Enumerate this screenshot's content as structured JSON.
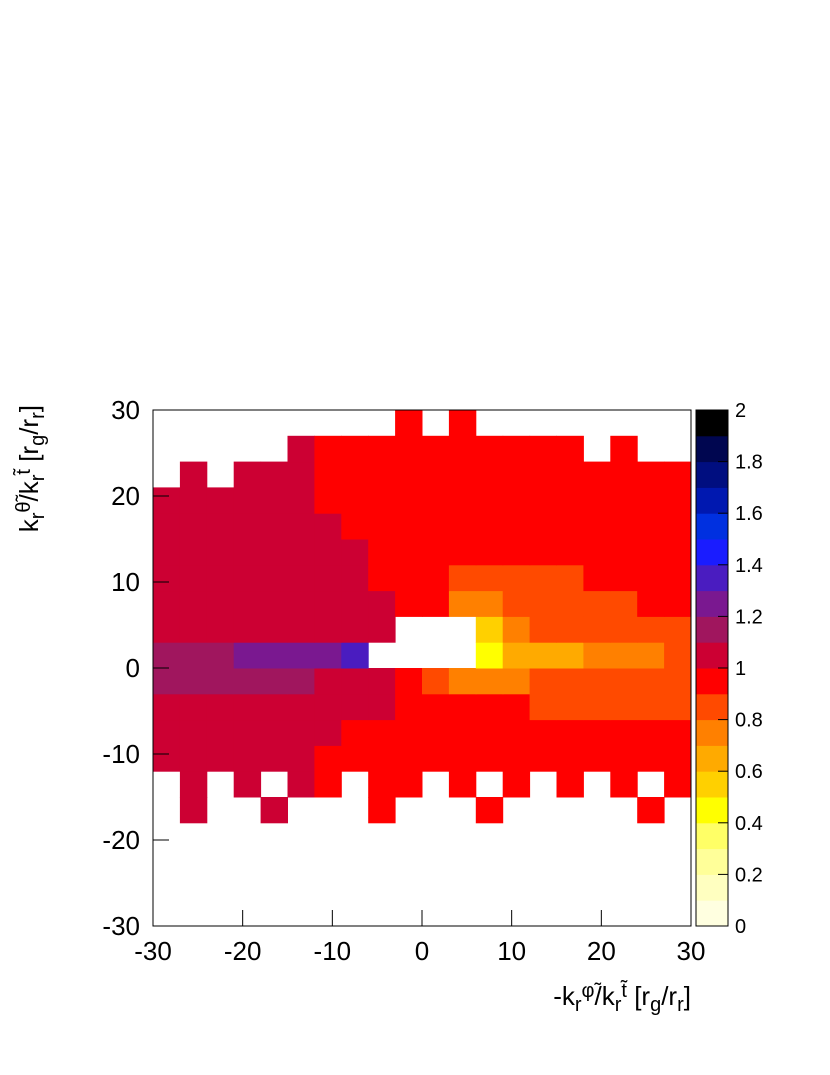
{
  "chart_data": {
    "type": "heatmap",
    "xlabel": [
      {
        "text": "-k"
      },
      {
        "text": "r",
        "pos": "sub"
      },
      {
        "text": "φ̃",
        "pos": "sup"
      },
      {
        "text": "/k"
      },
      {
        "text": "r",
        "pos": "sub"
      },
      {
        "text": "t̃",
        "pos": "sup"
      },
      {
        "text": " [r"
      },
      {
        "text": "g",
        "pos": "sub"
      },
      {
        "text": "/r"
      },
      {
        "text": "r",
        "pos": "sub"
      },
      {
        "text": "]"
      }
    ],
    "ylabel": [
      {
        "text": "k"
      },
      {
        "text": "r",
        "pos": "sub"
      },
      {
        "text": "θ̃",
        "pos": "sup"
      },
      {
        "text": "/k"
      },
      {
        "text": "r",
        "pos": "sub"
      },
      {
        "text": "t̃",
        "pos": "sup"
      },
      {
        "text": " [r"
      },
      {
        "text": "g",
        "pos": "sub"
      },
      {
        "text": "/r"
      },
      {
        "text": "r",
        "pos": "sub"
      },
      {
        "text": "]"
      }
    ],
    "xbins": [
      -30,
      -27,
      -24,
      -21,
      -18,
      -15,
      -12,
      -9,
      -6,
      -3,
      0,
      3,
      6,
      9,
      12,
      15,
      18,
      21,
      24,
      27,
      30
    ],
    "ybins": [
      -30,
      -27,
      -24,
      -21,
      -18,
      -15,
      -12,
      -9,
      -6,
      -3,
      0,
      3,
      6,
      9,
      12,
      15,
      18,
      21,
      24,
      27,
      30
    ],
    "z": [
      [
        null,
        null,
        null,
        null,
        null,
        null,
        null,
        null,
        null,
        null,
        null,
        null,
        null,
        null,
        null,
        null,
        null,
        null,
        null,
        null
      ],
      [
        null,
        null,
        null,
        null,
        null,
        null,
        null,
        null,
        null,
        null,
        null,
        null,
        null,
        null,
        null,
        null,
        null,
        null,
        null,
        null
      ],
      [
        null,
        null,
        null,
        null,
        null,
        null,
        null,
        null,
        null,
        null,
        null,
        null,
        null,
        null,
        null,
        null,
        null,
        null,
        null,
        null
      ],
      [
        null,
        null,
        null,
        null,
        null,
        null,
        null,
        null,
        null,
        null,
        null,
        null,
        null,
        null,
        null,
        null,
        null,
        null,
        null,
        null
      ],
      [
        null,
        1.05,
        null,
        null,
        1.05,
        null,
        null,
        null,
        0.95,
        null,
        null,
        null,
        0.95,
        null,
        null,
        null,
        null,
        null,
        0.95,
        null
      ],
      [
        null,
        1.05,
        null,
        1.05,
        null,
        1.05,
        0.95,
        null,
        0.95,
        0.95,
        null,
        0.95,
        null,
        0.95,
        null,
        0.95,
        null,
        0.95,
        null,
        0.95
      ],
      [
        1.05,
        1.05,
        1.05,
        1.05,
        1.05,
        1.05,
        0.95,
        0.95,
        0.95,
        0.95,
        0.95,
        0.95,
        0.95,
        0.95,
        0.95,
        0.95,
        0.95,
        0.95,
        0.95,
        0.95
      ],
      [
        1.05,
        1.05,
        1.05,
        1.05,
        1.05,
        1.05,
        1.05,
        0.95,
        0.95,
        0.95,
        0.95,
        0.95,
        0.95,
        0.95,
        0.95,
        0.95,
        0.95,
        0.95,
        0.95,
        0.95
      ],
      [
        1.05,
        1.05,
        1.05,
        1.05,
        1.05,
        1.05,
        1.05,
        1.05,
        1.05,
        0.95,
        0.95,
        0.95,
        0.95,
        0.95,
        0.85,
        0.85,
        0.85,
        0.85,
        0.85,
        0.85
      ],
      [
        1.15,
        1.15,
        1.15,
        1.15,
        1.15,
        1.15,
        1.05,
        1.05,
        1.05,
        0.95,
        0.85,
        0.75,
        0.75,
        0.75,
        0.85,
        0.85,
        0.85,
        0.85,
        0.85,
        0.85
      ],
      [
        1.15,
        1.15,
        1.15,
        1.25,
        1.25,
        1.25,
        1.25,
        1.35,
        null,
        null,
        null,
        null,
        0.45,
        0.65,
        0.65,
        0.65,
        0.75,
        0.75,
        0.75,
        0.85
      ],
      [
        1.05,
        1.05,
        1.05,
        1.05,
        1.05,
        1.05,
        1.05,
        1.05,
        1.05,
        null,
        null,
        null,
        0.55,
        0.75,
        0.85,
        0.85,
        0.85,
        0.85,
        0.85,
        0.85
      ],
      [
        1.05,
        1.05,
        1.05,
        1.05,
        1.05,
        1.05,
        1.05,
        1.05,
        1.05,
        0.95,
        0.95,
        0.75,
        0.75,
        0.85,
        0.85,
        0.85,
        0.85,
        0.85,
        0.95,
        0.95
      ],
      [
        1.05,
        1.05,
        1.05,
        1.05,
        1.05,
        1.05,
        1.05,
        1.05,
        0.95,
        0.95,
        0.95,
        0.85,
        0.85,
        0.85,
        0.85,
        0.85,
        0.95,
        0.95,
        0.95,
        0.95
      ],
      [
        1.05,
        1.05,
        1.05,
        1.05,
        1.05,
        1.05,
        1.05,
        1.05,
        0.95,
        0.95,
        0.95,
        0.95,
        0.95,
        0.95,
        0.95,
        0.95,
        0.95,
        0.95,
        0.95,
        0.95
      ],
      [
        1.05,
        1.05,
        1.05,
        1.05,
        1.05,
        1.05,
        1.05,
        0.95,
        0.95,
        0.95,
        0.95,
        0.95,
        0.95,
        0.95,
        0.95,
        0.95,
        0.95,
        0.95,
        0.95,
        0.95
      ],
      [
        1.05,
        1.05,
        1.05,
        1.05,
        1.05,
        1.05,
        0.95,
        0.95,
        0.95,
        0.95,
        0.95,
        0.95,
        0.95,
        0.95,
        0.95,
        0.95,
        0.95,
        0.95,
        0.95,
        0.95
      ],
      [
        null,
        1.05,
        null,
        1.05,
        1.05,
        1.05,
        0.95,
        0.95,
        0.95,
        0.95,
        0.95,
        0.95,
        0.95,
        0.95,
        0.95,
        0.95,
        0.95,
        0.95,
        0.95,
        0.95
      ],
      [
        null,
        null,
        null,
        null,
        null,
        1.05,
        0.95,
        0.95,
        0.95,
        0.95,
        0.95,
        0.95,
        0.95,
        0.95,
        0.95,
        0.95,
        null,
        0.95,
        null,
        null
      ],
      [
        null,
        null,
        null,
        null,
        null,
        null,
        null,
        null,
        null,
        0.95,
        null,
        0.95,
        null,
        null,
        null,
        null,
        null,
        null,
        null,
        null
      ]
    ],
    "xlim": [
      -30,
      30
    ],
    "ylim": [
      -30,
      30
    ],
    "xticks": [
      -30,
      -20,
      -10,
      0,
      10,
      20,
      30
    ],
    "yticks": [
      -30,
      -20,
      -10,
      0,
      10,
      20,
      30
    ],
    "zlim": [
      0,
      2
    ],
    "zticks": [
      0,
      0.2,
      0.4,
      0.6,
      0.8,
      1,
      1.2,
      1.4,
      1.6,
      1.8,
      2
    ],
    "palette": [
      "#ffffe0",
      "#ffffc0",
      "#ffff99",
      "#ffff66",
      "#ffff00",
      "#ffd000",
      "#ffaa00",
      "#ff8000",
      "#ff4a00",
      "#ff0000",
      "#cc0033",
      "#a0165e",
      "#7a1890",
      "#4a1cc0",
      "#1a1cff",
      "#0030e0",
      "#0018b0",
      "#000e80",
      "#000650",
      "#000000"
    ]
  }
}
